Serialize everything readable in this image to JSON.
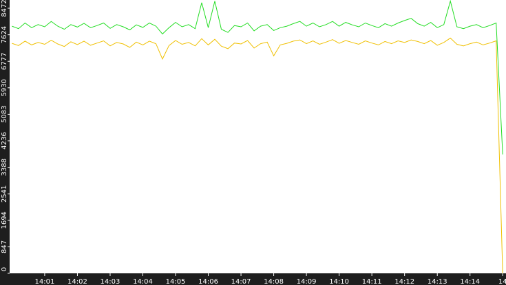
{
  "chart_data": {
    "type": "line",
    "x": [
      0,
      0.2,
      0.4,
      0.6,
      0.8,
      1,
      1.2,
      1.4,
      1.6,
      1.8,
      2,
      2.2,
      2.4,
      2.6,
      2.8,
      3,
      3.2,
      3.4,
      3.6,
      3.8,
      4,
      4.2,
      4.4,
      4.6,
      4.8,
      5,
      5.2,
      5.4,
      5.6,
      5.8,
      6,
      6.2,
      6.4,
      6.6,
      6.8,
      7,
      7.2,
      7.4,
      7.6,
      7.8,
      8,
      8.2,
      8.4,
      8.6,
      8.8,
      9,
      9.2,
      9.4,
      9.6,
      9.8,
      10,
      10.2,
      10.4,
      10.6,
      10.8,
      11,
      11.2,
      11.4,
      11.6,
      11.8,
      12,
      12.2,
      12.4,
      12.6,
      12.8,
      13,
      13.2,
      13.4,
      13.6,
      13.8,
      14,
      14.2,
      14.4,
      14.6,
      14.8,
      15
    ],
    "series": [
      {
        "color": "#22dd22",
        "values": [
          7900,
          7820,
          8000,
          7850,
          7950,
          7880,
          8050,
          7900,
          7800,
          7950,
          7870,
          7990,
          7850,
          7920,
          8000,
          7830,
          7950,
          7880,
          7780,
          7940,
          7860,
          8000,
          7900,
          7650,
          7850,
          8020,
          7880,
          7950,
          7820,
          8650,
          7850,
          8700,
          7800,
          7700,
          7920,
          7880,
          8000,
          7750,
          7900,
          7950,
          7760,
          7850,
          7900,
          7980,
          8050,
          7900,
          8000,
          7880,
          7950,
          8050,
          7900,
          8020,
          7940,
          7880,
          8000,
          7920,
          7850,
          7980,
          7900,
          8000,
          8080,
          8150,
          7980,
          7900,
          8020,
          7850,
          7950,
          8700,
          7880,
          7820,
          7900,
          7950,
          7850,
          7920,
          8000,
          3800
        ]
      },
      {
        "color": "#f0c000",
        "values": [
          7350,
          7280,
          7420,
          7300,
          7380,
          7320,
          7450,
          7330,
          7250,
          7400,
          7310,
          7420,
          7290,
          7360,
          7430,
          7270,
          7380,
          7330,
          7220,
          7390,
          7300,
          7420,
          7340,
          6850,
          7280,
          7440,
          7320,
          7380,
          7270,
          7500,
          7300,
          7480,
          7260,
          7180,
          7360,
          7330,
          7440,
          7200,
          7340,
          7390,
          6950,
          7300,
          7350,
          7420,
          7460,
          7340,
          7430,
          7320,
          7390,
          7470,
          7350,
          7440,
          7380,
          7320,
          7430,
          7360,
          7300,
          7410,
          7340,
          7430,
          7380,
          7460,
          7410,
          7340,
          7440,
          7290,
          7380,
          7520,
          7320,
          7270,
          7340,
          7390,
          7300,
          7360,
          7430,
          0
        ]
      }
    ],
    "xlim": [
      0,
      15.1
    ],
    "ylim": [
      0,
      8472
    ],
    "yticks": [
      0,
      847,
      1694,
      2541,
      3388,
      4236,
      5083,
      5930,
      6777,
      7624,
      8472
    ],
    "xticks": [
      {
        "value": 1,
        "label": "14:01"
      },
      {
        "value": 2,
        "label": "14:02"
      },
      {
        "value": 3,
        "label": "14:03"
      },
      {
        "value": 4,
        "label": "14:04"
      },
      {
        "value": 5,
        "label": "14:05"
      },
      {
        "value": 6,
        "label": "14:06"
      },
      {
        "value": 7,
        "label": "14:07"
      },
      {
        "value": 8,
        "label": "14:08"
      },
      {
        "value": 9,
        "label": "14:09"
      },
      {
        "value": 10,
        "label": "14:10"
      },
      {
        "value": 11,
        "label": "14:11"
      },
      {
        "value": 12,
        "label": "14:12"
      },
      {
        "value": 13,
        "label": "14:13"
      },
      {
        "value": 14,
        "label": "14:14"
      },
      {
        "value": 15,
        "label": "14"
      }
    ]
  }
}
